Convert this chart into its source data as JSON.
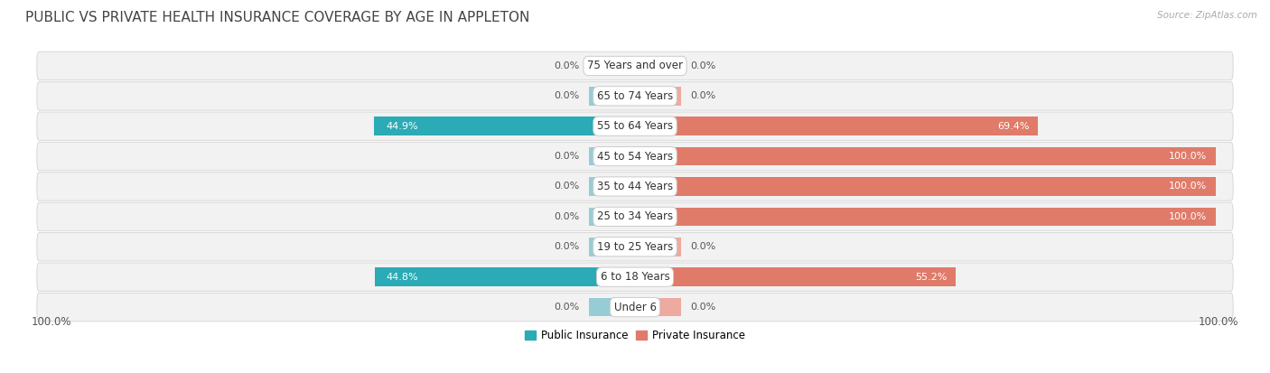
{
  "title": "PUBLIC VS PRIVATE HEALTH INSURANCE COVERAGE BY AGE IN APPLETON",
  "source": "Source: ZipAtlas.com",
  "categories": [
    "Under 6",
    "6 to 18 Years",
    "19 to 25 Years",
    "25 to 34 Years",
    "35 to 44 Years",
    "45 to 54 Years",
    "55 to 64 Years",
    "65 to 74 Years",
    "75 Years and over"
  ],
  "public_values": [
    0.0,
    44.8,
    0.0,
    0.0,
    0.0,
    0.0,
    44.9,
    0.0,
    0.0
  ],
  "private_values": [
    0.0,
    55.2,
    0.0,
    100.0,
    100.0,
    100.0,
    69.4,
    0.0,
    0.0
  ],
  "public_color_strong": "#2BABB5",
  "public_color_light": "#96CDD4",
  "private_color_strong": "#E07B6A",
  "private_color_light": "#EDAAA0",
  "row_bg_color": "#F2F2F2",
  "row_border_color": "#D8D8D8",
  "title_color": "#444444",
  "source_color": "#AAAAAA",
  "label_outside_color": "#555555",
  "label_inside_color": "#FFFFFF",
  "stub_size": 8.0,
  "max_val": 100.0,
  "figsize": [
    14.06,
    4.13
  ],
  "dpi": 100
}
